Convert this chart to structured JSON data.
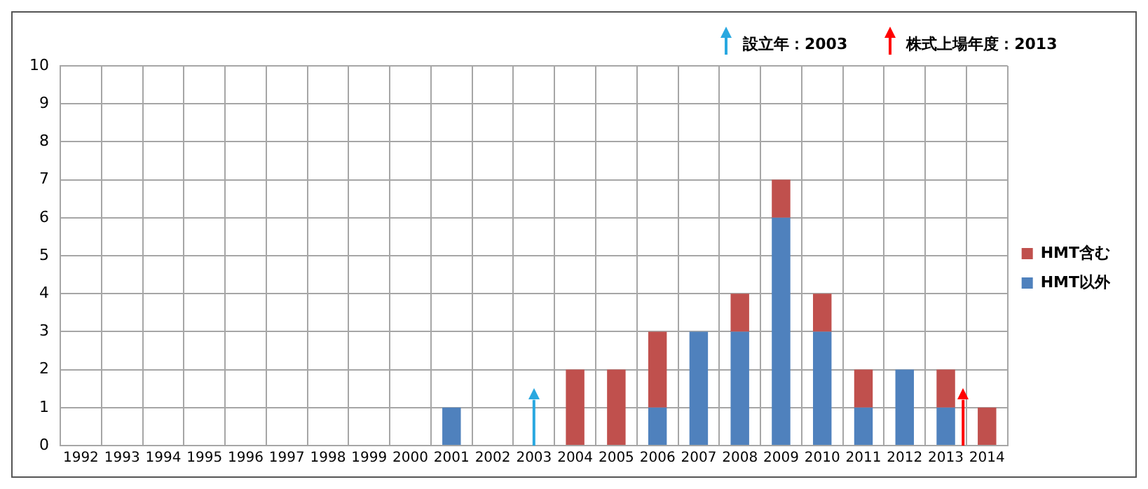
{
  "chart_data": {
    "type": "bar",
    "stacked": true,
    "categories": [
      "1992",
      "1993",
      "1994",
      "1995",
      "1996",
      "1997",
      "1998",
      "1999",
      "2000",
      "2001",
      "2002",
      "2003",
      "2004",
      "2005",
      "2006",
      "2007",
      "2008",
      "2009",
      "2010",
      "2011",
      "2012",
      "2013",
      "2014"
    ],
    "series": [
      {
        "name": "HMT以外",
        "color": "#4f81bd",
        "values": [
          0,
          0,
          0,
          0,
          0,
          0,
          0,
          0,
          0,
          1,
          0,
          0,
          0,
          0,
          1,
          3,
          3,
          6,
          3,
          1,
          2,
          1,
          0
        ]
      },
      {
        "name": "HMT含む",
        "color": "#c0504d",
        "values": [
          0,
          0,
          0,
          0,
          0,
          0,
          0,
          0,
          0,
          0,
          0,
          0,
          2,
          2,
          2,
          0,
          1,
          1,
          1,
          1,
          0,
          1,
          1
        ]
      }
    ],
    "ylim": [
      0,
      10
    ],
    "yticks": [
      0,
      1,
      2,
      3,
      4,
      5,
      6,
      7,
      8,
      9,
      10
    ],
    "grid": true,
    "legend": "right",
    "ref_lines": [
      {
        "axis": "x",
        "value": "2003",
        "label": "設立年：2003",
        "color": "#29a8e0"
      },
      {
        "axis": "x",
        "value": "2013",
        "label": "株式上場年度：2013",
        "color": "#ff0000"
      }
    ]
  }
}
